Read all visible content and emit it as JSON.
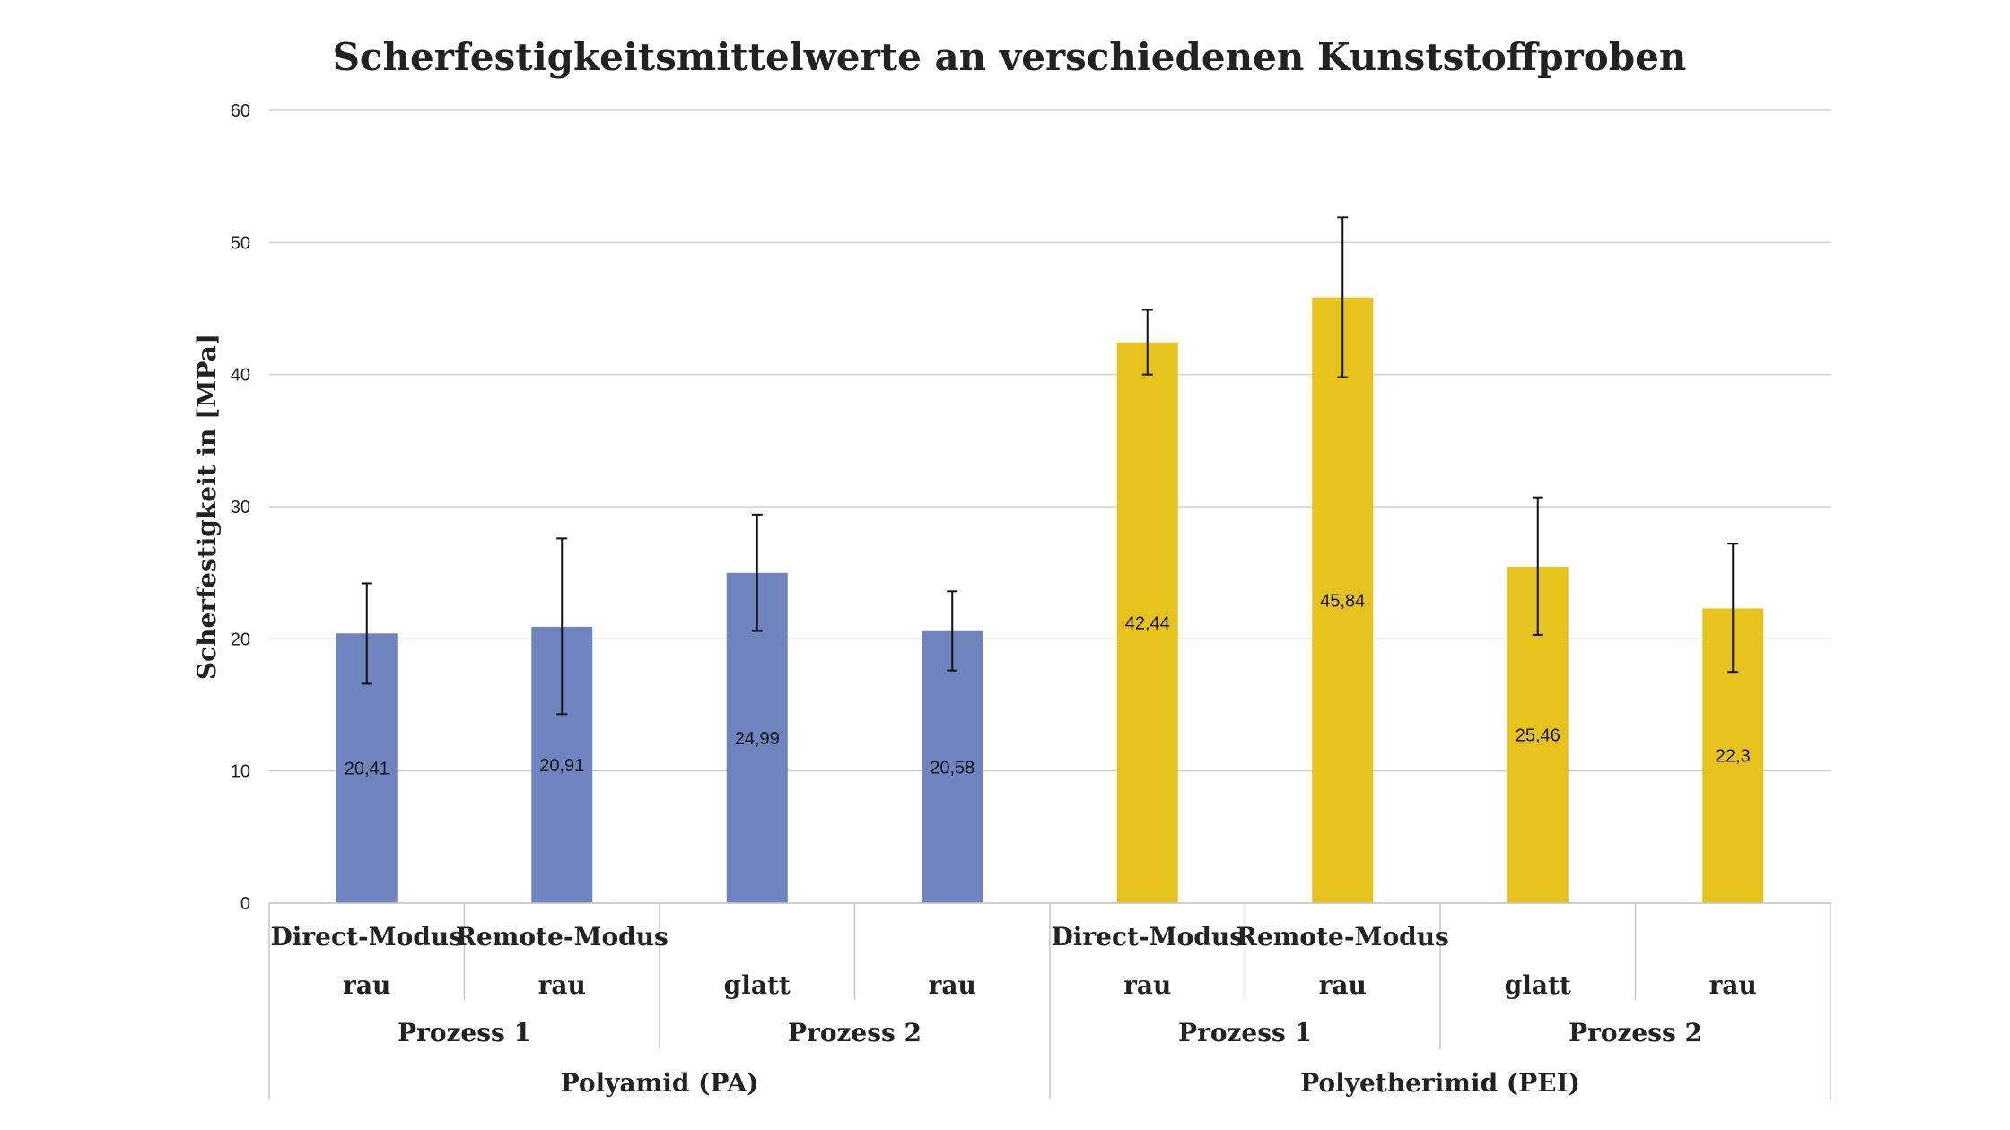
{
  "chart_data": {
    "type": "bar",
    "title": "Scherfestigkeitsmittelwerte an verschiedenen Kunststoffproben",
    "ylabel": "Scherfestigkeit in [MPa]",
    "xlabel": "",
    "ylim": [
      0,
      60
    ],
    "yticks": [
      "0",
      "10",
      "20",
      "30",
      "40",
      "50",
      "60"
    ],
    "grid": true,
    "colors": {
      "Polyamid (PA)": "#6F84BE",
      "Polyetherimid (PEI)": "#E5C21C"
    },
    "categories": [
      {
        "line1": "Direct-Modus",
        "line2": "rau"
      },
      {
        "line1": "Remote-Modus",
        "line2": "rau"
      },
      {
        "line1": "",
        "line2": "glatt"
      },
      {
        "line1": "",
        "line2": "rau"
      },
      {
        "line1": "Direct-Modus",
        "line2": "rau"
      },
      {
        "line1": "Remote-Modus",
        "line2": "rau"
      },
      {
        "line1": "",
        "line2": "glatt"
      },
      {
        "line1": "",
        "line2": "rau"
      }
    ],
    "processes": [
      "Prozess 1",
      "Prozess 2",
      "Prozess 1",
      "Prozess 2"
    ],
    "materials": [
      "Polyamid (PA)",
      "Polyetherimid (PEI)"
    ],
    "values": [
      20.41,
      20.91,
      24.99,
      20.58,
      42.44,
      45.84,
      25.46,
      22.3
    ],
    "value_labels": [
      "20,41",
      "20,91",
      "24,99",
      "20,58",
      "42,44",
      "45,84",
      "25,46",
      "22,3"
    ],
    "error_low": [
      16.6,
      14.3,
      20.6,
      17.6,
      40.0,
      39.8,
      20.3,
      17.5
    ],
    "error_high": [
      24.2,
      27.6,
      29.4,
      23.6,
      44.9,
      51.9,
      30.7,
      27.2
    ],
    "bar_material": [
      "Polyamid (PA)",
      "Polyamid (PA)",
      "Polyamid (PA)",
      "Polyamid (PA)",
      "Polyetherimid (PEI)",
      "Polyetherimid (PEI)",
      "Polyetherimid (PEI)",
      "Polyetherimid (PEI)"
    ]
  }
}
